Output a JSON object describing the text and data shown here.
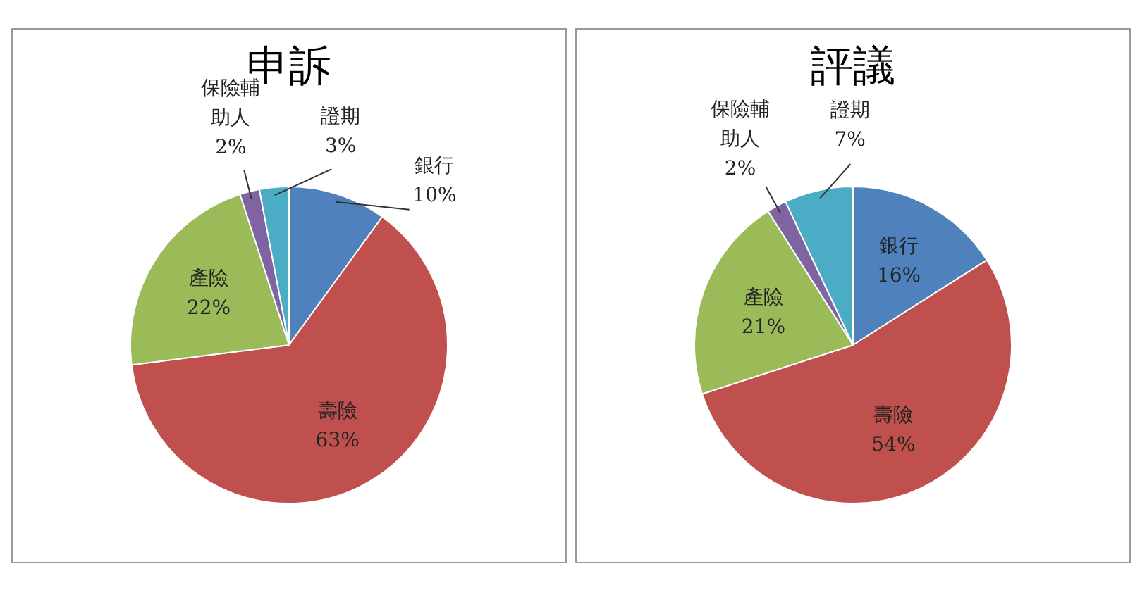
{
  "chart_data": [
    {
      "type": "pie",
      "title": "申訴",
      "categories": [
        "銀行",
        "壽險",
        "產險",
        "保險輔助人",
        "證期"
      ],
      "values": [
        10,
        63,
        22,
        2,
        3
      ],
      "value_labels": [
        "10%",
        "63%",
        "22%",
        "2%",
        "3%"
      ],
      "colors": [
        "#4f81bd",
        "#c0504d",
        "#9bbb59",
        "#8064a2",
        "#4bacc6"
      ],
      "legend": false
    },
    {
      "type": "pie",
      "title": "評議",
      "categories": [
        "銀行",
        "壽險",
        "產險",
        "保險輔助人",
        "證期"
      ],
      "values": [
        16,
        54,
        21,
        2,
        7
      ],
      "value_labels": [
        "16%",
        "54%",
        "21%",
        "2%",
        "7%"
      ],
      "colors": [
        "#4f81bd",
        "#c0504d",
        "#9bbb59",
        "#8064a2",
        "#4bacc6"
      ],
      "legend": false
    }
  ]
}
